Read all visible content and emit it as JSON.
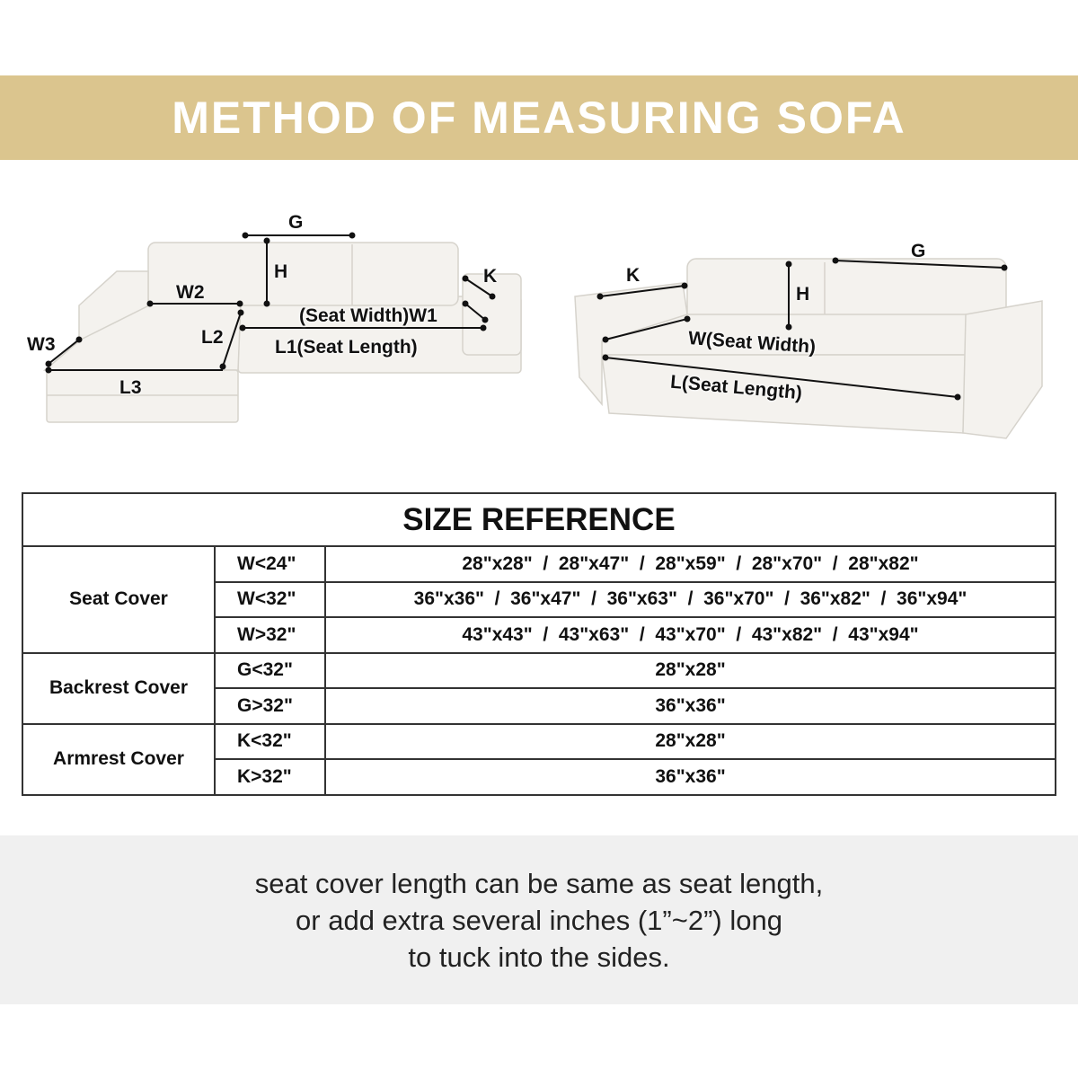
{
  "banner": {
    "title": "METHOD OF MEASURING SOFA",
    "color": "#dbc58e"
  },
  "sectional_labels": {
    "g": "G",
    "h": "H",
    "k": "K",
    "w2": "W2",
    "w1": "(Seat Width)W1",
    "l2": "L2",
    "l1": "L1(Seat Length)",
    "w3": "W3",
    "l3": "L3"
  },
  "sofa_labels": {
    "k": "K",
    "g": "G",
    "h": "H",
    "w": "W(Seat Width)",
    "l": "L(Seat Length)"
  },
  "table": {
    "title": "SIZE REFERENCE",
    "groups": [
      {
        "name": "Seat Cover",
        "rows": [
          {
            "cond": "W<24\"",
            "sizes": "28\"x28\"  /  28\"x47\"  /  28\"x59\"  /  28\"x70\"  /  28\"x82\""
          },
          {
            "cond": "W<32\"",
            "sizes": "36\"x36\"  /  36\"x47\"  /  36\"x63\"  /  36\"x70\"  /  36\"x82\"  /  36\"x94\""
          },
          {
            "cond": "W>32\"",
            "sizes": "43\"x43\"  /  43\"x63\"  /  43\"x70\"  /  43\"x82\"  /  43\"x94\""
          }
        ]
      },
      {
        "name": "Backrest Cover",
        "rows": [
          {
            "cond": "G<32\"",
            "sizes": "28\"x28\""
          },
          {
            "cond": "G>32\"",
            "sizes": "36\"x36\""
          }
        ]
      },
      {
        "name": "Armrest Cover",
        "rows": [
          {
            "cond": "K<32\"",
            "sizes": "28\"x28\""
          },
          {
            "cond": "K>32\"",
            "sizes": "36\"x36\""
          }
        ]
      }
    ]
  },
  "note": {
    "lines": [
      "seat cover length can be same as seat length,",
      "or add extra several inches (1”~2”) long",
      "to tuck into the sides."
    ]
  }
}
